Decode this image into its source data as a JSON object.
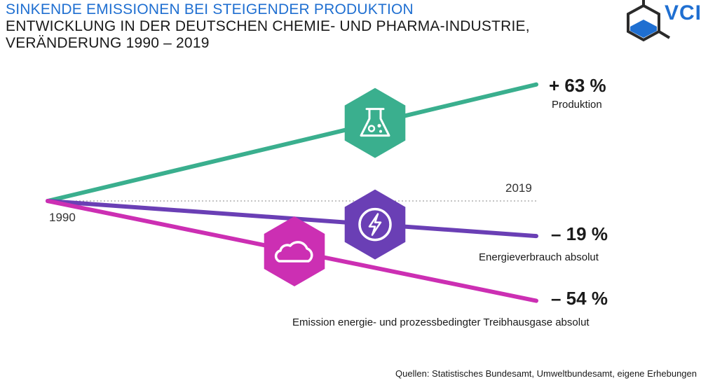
{
  "header": {
    "title": "SINKENDE EMISSIONEN BEI STEIGENDER PRODUKTION",
    "subtitle_line1": "ENTWICKLUNG IN DER DEUTSCHEN CHEMIE- UND PHARMA-INDUSTRIE,",
    "subtitle_line2": "VERÄNDERUNG 1990 – 2019"
  },
  "logo": {
    "text": "VCI",
    "color": "#1f6fd1"
  },
  "chart_data": {
    "type": "line",
    "x": [
      1990,
      2019
    ],
    "x_labels": [
      "1990",
      "2019"
    ],
    "unit": "%",
    "baseline": 0,
    "series": [
      {
        "name": "Produktion",
        "values": [
          0,
          63
        ],
        "value_label": "+ 63 %",
        "color": "#3aaf8e",
        "icon": "flask-icon"
      },
      {
        "name": "Energieverbrauch absolut",
        "values": [
          0,
          -19
        ],
        "value_label": "– 19 %",
        "color": "#6a3fb5",
        "icon": "lightning-icon"
      },
      {
        "name": "Emission energie- und prozessbedingter Treibhausgase absolut",
        "values": [
          0,
          -54
        ],
        "value_label": "– 54 %",
        "color": "#cc2fb3",
        "icon": "cloud-icon"
      }
    ],
    "grid": false,
    "legend": "none"
  },
  "source": "Quellen: Statistisches Bundesamt, Umweltbundesamt, eigene Erhebungen"
}
